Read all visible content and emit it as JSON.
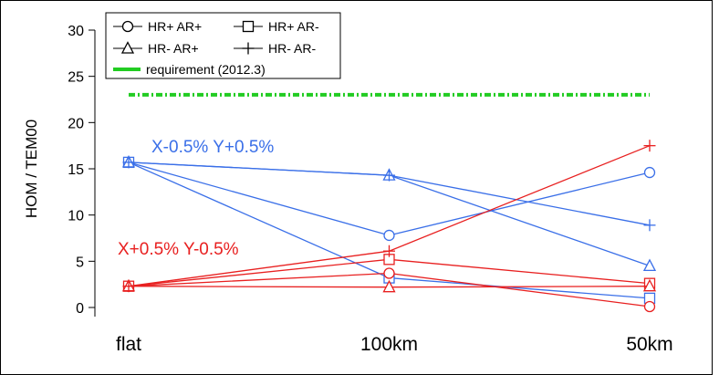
{
  "chart_data": {
    "type": "line",
    "categories": [
      "flat",
      "100km",
      "50km"
    ],
    "ylabel": "HOM / TEM00",
    "ylim": [
      0,
      30
    ],
    "yticks": [
      0,
      5,
      10,
      15,
      20,
      25,
      30
    ],
    "legend_position": "top-left",
    "legend": [
      {
        "label": "HR+ AR+",
        "marker": "circle"
      },
      {
        "label": "HR+ AR-",
        "marker": "square"
      },
      {
        "label": "HR- AR+",
        "marker": "triangle"
      },
      {
        "label": "HR- AR-",
        "marker": "plus"
      },
      {
        "label": "requirement (2012.3)",
        "marker": "line",
        "color": "#22cc22"
      }
    ],
    "requirement": {
      "value": 23,
      "color": "#22cc22"
    },
    "groups": [
      {
        "annotation": "X-0.5% Y+0.5%",
        "color": "#3a6fe8",
        "series": [
          {
            "name": "HR+ AR+",
            "marker": "circle",
            "values": [
              15.7,
              7.8,
              14.6
            ]
          },
          {
            "name": "HR+ AR-",
            "marker": "square",
            "values": [
              15.7,
              3.2,
              1.0
            ]
          },
          {
            "name": "HR- AR+",
            "marker": "triangle",
            "values": [
              15.7,
              14.3,
              4.5
            ]
          },
          {
            "name": "HR- AR-",
            "marker": "plus",
            "values": [
              15.7,
              14.3,
              8.9
            ]
          }
        ]
      },
      {
        "annotation": "X+0.5% Y-0.5%",
        "color": "#e82020",
        "series": [
          {
            "name": "HR+ AR+",
            "marker": "circle",
            "values": [
              2.3,
              3.7,
              0.1
            ]
          },
          {
            "name": "HR+ AR-",
            "marker": "square",
            "values": [
              2.3,
              5.2,
              2.6
            ]
          },
          {
            "name": "HR- AR+",
            "marker": "triangle",
            "values": [
              2.3,
              2.2,
              2.3
            ]
          },
          {
            "name": "HR- AR-",
            "marker": "plus",
            "values": [
              2.3,
              6.1,
              17.5
            ]
          }
        ]
      }
    ]
  }
}
